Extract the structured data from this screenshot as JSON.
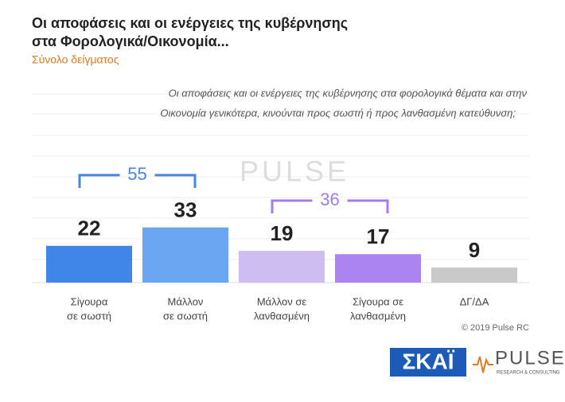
{
  "chart_data": {
    "type": "bar",
    "title": [
      "Οι αποφάσεις και οι ενέργειες της κυβέρνησης",
      "στα Φορολογικά/Οικονομία..."
    ],
    "subtitle": "Σύνολο δείγματος",
    "question": [
      "Οι αποφάσεις και οι ενέργειες της κυβέρνησης στα φορολογικά θέματα και στην",
      "Οικονομία γενικότερα, κινούνται προς σωστή ή προς λανθασμένη κατεύθυνση;"
    ],
    "categories": [
      [
        "Σίγουρα",
        "σε σωστή"
      ],
      [
        "Μάλλον",
        "σε σωστή"
      ],
      [
        "Μάλλον σε",
        "λανθασμένη"
      ],
      [
        "Σίγουρα σε",
        "λανθασμένη"
      ],
      [
        "ΔΓ/ΔΑ"
      ]
    ],
    "values": [
      22,
      33,
      19,
      17,
      9
    ],
    "colors": [
      "#3f86e8",
      "#6aa6f2",
      "#cdbdf0",
      "#ab84f2",
      "#c9c9c9"
    ],
    "annotations": [
      {
        "text": "55",
        "color": "#4a86e0"
      },
      {
        "text": "36",
        "color": "#a47cf0"
      }
    ],
    "copyright": "© 2019 Pulse RC",
    "logos": {
      "skai": "ΣΚΑΪ",
      "pulse": "PULSE",
      "pulse_sub": "RESEARCH & CONSULTING"
    }
  }
}
